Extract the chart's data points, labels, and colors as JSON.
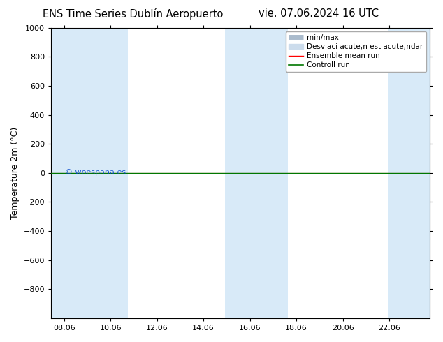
{
  "title_left": "ENS Time Series Dublín Aeropuerto",
  "title_right": "vie. 07.06.2024 16 UTC",
  "ylabel": "Temperature 2m (°C)",
  "watermark": "© woespana.es",
  "ylim_top": -1000,
  "ylim_bottom": 1000,
  "yticks": [
    -800,
    -600,
    -400,
    -200,
    0,
    200,
    400,
    600,
    800,
    1000
  ],
  "xlim_start": 7.5,
  "xlim_end": 23.8,
  "xticks": [
    8.06,
    10.06,
    12.06,
    14.06,
    16.06,
    18.06,
    20.06,
    22.06
  ],
  "xtick_labels": [
    "08.06",
    "10.06",
    "12.06",
    "14.06",
    "16.06",
    "18.06",
    "20.06",
    "22.06"
  ],
  "shaded_bands": [
    [
      7.5,
      9.3
    ],
    [
      9.3,
      10.8
    ],
    [
      15.0,
      16.5
    ],
    [
      16.5,
      17.7
    ],
    [
      22.0,
      23.8
    ]
  ],
  "shaded_color": "#d8eaf8",
  "control_run_y": 0,
  "ensemble_mean_y": 0,
  "legend_label_minmax": "min/max",
  "legend_label_std": "Desviaci acute;n est acute;ndar",
  "legend_label_mean": "Ensemble mean run",
  "legend_label_ctrl": "Controll run",
  "bg_color": "#ffffff",
  "font_size_title": 10.5,
  "font_size_axis": 9,
  "font_size_tick": 8,
  "font_size_legend": 7.5,
  "font_size_watermark": 8
}
